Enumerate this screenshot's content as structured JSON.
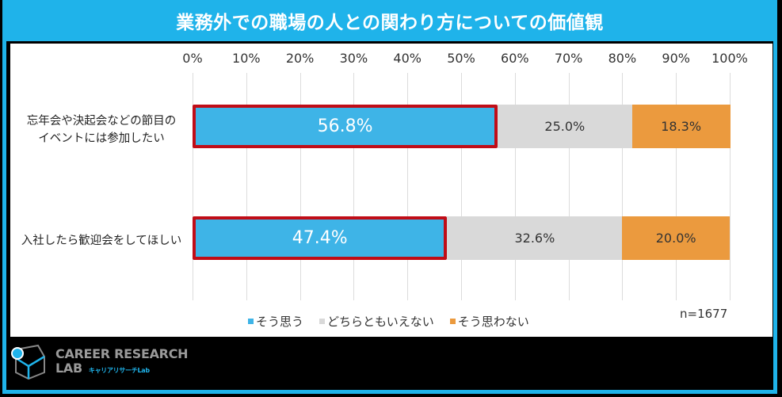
{
  "header": {
    "title": "業務外での職場の人との関わり方についての価値観"
  },
  "colors": {
    "accent": "#1fb3ea",
    "yes": "#3eb4e7",
    "mid": "#d9d9d9",
    "no": "#eb9a3e",
    "highlight": "#c00d17"
  },
  "chart_data": {
    "type": "bar",
    "orientation": "horizontal",
    "stacked": true,
    "title": "業務外での職場の人との関わり方についての価値観",
    "categories": [
      "忘年会や決起会などの節目のイベントには参加したい",
      "入社したら歓迎会をしてほしい"
    ],
    "category_lines": [
      [
        "忘年会や決起会などの節目の",
        "イベントには参加したい"
      ],
      [
        "入社したら歓迎会をしてほしい"
      ]
    ],
    "series": [
      {
        "name": "そう思う",
        "values": [
          56.8,
          47.4
        ],
        "labels": [
          "56.8%",
          "47.4%"
        ]
      },
      {
        "name": "どちらともいえない",
        "values": [
          25.0,
          32.6
        ],
        "labels": [
          "25.0%",
          "32.6%"
        ]
      },
      {
        "name": "そう思わない",
        "values": [
          18.3,
          20.0
        ],
        "labels": [
          "18.3%",
          "20.0%"
        ]
      }
    ],
    "xticks": [
      "0%",
      "10%",
      "20%",
      "30%",
      "40%",
      "50%",
      "60%",
      "70%",
      "80%",
      "90%",
      "100%"
    ],
    "xlim": [
      0,
      100
    ],
    "grid": true,
    "legend_position": "bottom",
    "annotation": "n=1677",
    "highlighted_series": "そう思う"
  },
  "footer": {
    "logo_line1": "CAREER RESEARCH",
    "logo_line2": "LAB",
    "logo_sub": "キャリアリサーチLab"
  }
}
